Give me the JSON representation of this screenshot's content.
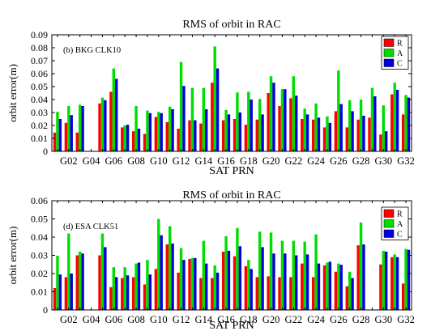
{
  "chart_data": [
    {
      "type": "bar",
      "title": "RMS of orbit in RAC",
      "annotation": "(b) BKG CLK10",
      "xlabel": "SAT  PRN",
      "ylabel": "orbit error(m)",
      "ylim": [
        0,
        0.09
      ],
      "yticks": [
        "0",
        "0.01",
        "0.02",
        "0.03",
        "0.04",
        "0.05",
        "0.06",
        "0.07",
        "0.08",
        "0.09"
      ],
      "categories": [
        "G01",
        "G02",
        "G03",
        "G04",
        "G05",
        "G06",
        "G07",
        "G08",
        "G09",
        "G10",
        "G11",
        "G12",
        "G13",
        "G14",
        "G15",
        "G16",
        "G17",
        "G18",
        "G19",
        "G20",
        "G21",
        "G22",
        "G23",
        "G24",
        "G25",
        "G26",
        "G27",
        "G28",
        "G29",
        "G30",
        "G31",
        "G32"
      ],
      "xtick_labels": [
        "G02",
        "G04",
        "G06",
        "G08",
        "G10",
        "G12",
        "G14",
        "G16",
        "G18",
        "G20",
        "G22",
        "G24",
        "G26",
        "G28",
        "G30",
        "G32"
      ],
      "legend_position": "top-right",
      "grid": false,
      "series": [
        {
          "name": "R",
          "color": "#ff0000",
          "values": [
            0.0145,
            0.022,
            0.0145,
            null,
            0.037,
            0.046,
            0.0185,
            0.0155,
            0.0135,
            0.0265,
            0.0225,
            0.0175,
            0.024,
            0.0215,
            0.053,
            0.024,
            0.025,
            0.0205,
            0.0245,
            0.045,
            0.035,
            0.041,
            0.025,
            0.0245,
            0.0185,
            0.031,
            0.0185,
            0.0245,
            0.026,
            0.013,
            0.044,
            0.0285
          ]
        },
        {
          "name": "A",
          "color": "#00dd00",
          "values": [
            0.0305,
            0.035,
            0.036,
            null,
            0.0415,
            0.064,
            0.02,
            0.035,
            0.0315,
            0.0305,
            0.0345,
            0.069,
            0.049,
            0.049,
            0.081,
            0.032,
            0.0455,
            0.046,
            0.0405,
            0.058,
            0.048,
            0.058,
            0.033,
            0.037,
            0.027,
            0.0625,
            0.0395,
            0.04,
            0.049,
            0.0355,
            0.053,
            0.0435
          ]
        },
        {
          "name": "C",
          "color": "#0000dd",
          "values": [
            0.025,
            0.028,
            0.035,
            null,
            0.0395,
            0.056,
            0.0205,
            0.0175,
            0.0295,
            0.0295,
            0.0325,
            0.0505,
            0.024,
            0.0325,
            0.064,
            0.0285,
            0.03,
            0.04,
            0.0285,
            0.053,
            0.048,
            0.043,
            0.0285,
            0.026,
            0.022,
            0.0365,
            0.031,
            0.0275,
            0.0425,
            0.0155,
            0.0475,
            0.0415
          ]
        }
      ]
    },
    {
      "type": "bar",
      "title": "RMS of orbit in RAC",
      "annotation": "(d) ESA CLK51",
      "xlabel": "SAT  PRN",
      "ylabel": "orbit error(m)",
      "ylim": [
        0,
        0.06
      ],
      "yticks": [
        "0",
        "0.01",
        "0.02",
        "0.03",
        "0.04",
        "0.05",
        "0.06"
      ],
      "categories": [
        "G01",
        "G02",
        "G03",
        "G04",
        "G05",
        "G06",
        "G07",
        "G08",
        "G09",
        "G10",
        "G11",
        "G12",
        "G13",
        "G14",
        "G15",
        "G16",
        "G17",
        "G18",
        "G19",
        "G20",
        "G21",
        "G22",
        "G23",
        "G24",
        "G25",
        "G26",
        "G27",
        "G28",
        "G29",
        "G30",
        "G31",
        "G32"
      ],
      "xtick_labels": [
        "G02",
        "G04",
        "G06",
        "G08",
        "G10",
        "G12",
        "G14",
        "G16",
        "G18",
        "G20",
        "G22",
        "G24",
        "G26",
        "G28",
        "G30",
        "G32"
      ],
      "legend_position": "top-right",
      "grid": false,
      "series": [
        {
          "name": "R",
          "color": "#ff0000",
          "values": [
            0.012,
            0.018,
            0.03,
            null,
            0.03,
            0.0125,
            0.0175,
            0.018,
            0.014,
            0.0225,
            0.036,
            0.0205,
            0.028,
            0.0175,
            0.0175,
            0.032,
            0.0295,
            0.024,
            0.018,
            0.0185,
            0.018,
            0.018,
            0.0255,
            0.018,
            0.0245,
            0.021,
            0.013,
            0.0355,
            null,
            0.025,
            0.029,
            0.0145
          ]
        },
        {
          "name": "A",
          "color": "#00dd00",
          "values": [
            0.0298,
            0.042,
            0.032,
            null,
            0.042,
            0.0235,
            0.0235,
            0.0255,
            0.0275,
            0.05,
            0.046,
            0.034,
            0.0285,
            0.038,
            0.0245,
            0.0405,
            0.045,
            0.0275,
            0.043,
            0.0425,
            0.038,
            0.038,
            0.0375,
            0.0415,
            0.026,
            0.0255,
            0.021,
            0.048,
            null,
            0.0325,
            0.0305,
            0.0335
          ]
        },
        {
          "name": "C",
          "color": "#0000dd",
          "values": [
            0.0195,
            0.02,
            0.031,
            null,
            0.0345,
            0.018,
            0.019,
            0.026,
            0.0195,
            0.041,
            0.0365,
            0.0275,
            0.0285,
            0.0255,
            0.0205,
            0.0325,
            0.035,
            0.0225,
            0.0345,
            0.031,
            0.031,
            0.03,
            0.0305,
            0.0255,
            0.0265,
            0.0248,
            0.0175,
            0.036,
            null,
            0.032,
            0.029,
            0.033
          ]
        }
      ]
    }
  ]
}
